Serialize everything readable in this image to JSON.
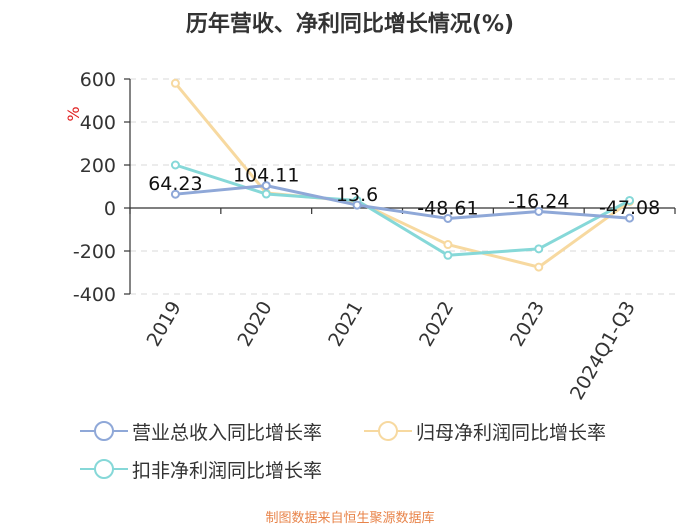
{
  "title": "历年营收、净利同比增长情况(%)",
  "source": "制图数据来自恒生聚源数据库",
  "chart_data": {
    "type": "line",
    "title": "历年营收、净利同比增长情况(%)",
    "ylabel": "%",
    "categories": [
      "2019",
      "2020",
      "2021",
      "2022",
      "2023",
      "2024Q1-Q3"
    ],
    "ylim": [
      -400,
      600
    ],
    "yticks": [
      600,
      400,
      200,
      0,
      -200,
      -400
    ],
    "grid": true,
    "legend_position": "bottom",
    "series": [
      {
        "name": "营业总收入同比增长率",
        "color": "#8fa8d8",
        "values": [
          64.23,
          104.11,
          13.6,
          -48.61,
          -16.24,
          -47.08
        ],
        "labels": [
          "64.23",
          "104.11",
          "13.6",
          "-48.61",
          "-16.24",
          "-47.08"
        ]
      },
      {
        "name": "归母净利润同比增长率",
        "color": "#f7d9a0",
        "values": [
          580,
          70,
          30,
          -170,
          -275,
          30
        ]
      },
      {
        "name": "扣非净利润同比增长率",
        "color": "#86d8d8",
        "values": [
          200,
          65,
          35,
          -220,
          -190,
          35
        ]
      }
    ]
  }
}
